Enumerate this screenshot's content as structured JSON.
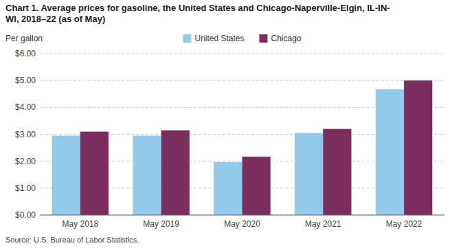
{
  "chart_data": {
    "type": "bar",
    "title": "Chart 1. Average prices for gasoline, the United States and Chicago-Naperville-Elgin, IL-IN-\nWI, 2018–22 (as of May)",
    "ylabel": "Per gallon",
    "source": "Source: U.S. Bureau of Labor Statistics.",
    "categories": [
      "May 2018",
      "May 2019",
      "May 2020",
      "May 2021",
      "May 2022"
    ],
    "series": [
      {
        "name": "United States",
        "color": "#92CAEC",
        "values": [
          2.95,
          2.95,
          1.97,
          3.05,
          4.67
        ]
      },
      {
        "name": "Chicago",
        "color": "#7B2D5E",
        "values": [
          3.1,
          3.15,
          2.17,
          3.2,
          5.0
        ]
      }
    ],
    "ylim": [
      0,
      6.0
    ],
    "yticks": [
      {
        "value": 0.0,
        "label": "$0.00"
      },
      {
        "value": 1.0,
        "label": "$1.00"
      },
      {
        "value": 2.0,
        "label": "$2.00"
      },
      {
        "value": 3.0,
        "label": "$3.00"
      },
      {
        "value": 4.0,
        "label": "$4.00"
      },
      {
        "value": 5.0,
        "label": "$5.00"
      },
      {
        "value": 6.0,
        "label": "$6.00"
      }
    ],
    "grid": true,
    "legend": "top"
  }
}
